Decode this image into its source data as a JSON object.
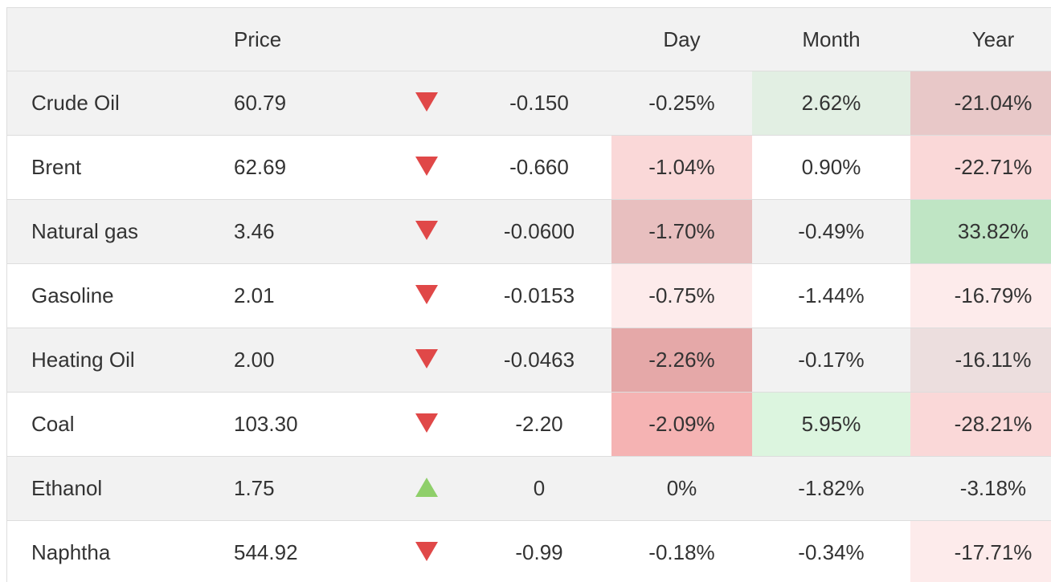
{
  "header": {
    "name": "",
    "price": "Price",
    "arrow": "",
    "change": "",
    "day": "Day",
    "month": "Month",
    "year": "Year"
  },
  "rows": [
    {
      "name": "Crude Oil",
      "price": "60.79",
      "direction": "down",
      "change": "-0.150",
      "day": "-0.25%",
      "month": "2.62%",
      "year": "-21.04%",
      "day_bg": "",
      "month_bg": "#e2efe3",
      "year_bg": "#e8c8c8"
    },
    {
      "name": "Brent",
      "price": "62.69",
      "direction": "down",
      "change": "-0.660",
      "day": "-1.04%",
      "month": "0.90%",
      "year": "-22.71%",
      "day_bg": "#fad8d8",
      "month_bg": "",
      "year_bg": "#fad8d8"
    },
    {
      "name": "Natural gas",
      "price": "3.46",
      "direction": "down",
      "change": "-0.0600",
      "day": "-1.70%",
      "month": "-0.49%",
      "year": "33.82%",
      "day_bg": "#e8bfbf",
      "month_bg": "",
      "year_bg": "#bfe5c4"
    },
    {
      "name": "Gasoline",
      "price": "2.01",
      "direction": "down",
      "change": "-0.0153",
      "day": "-0.75%",
      "month": "-1.44%",
      "year": "-16.79%",
      "day_bg": "#fdebeb",
      "month_bg": "",
      "year_bg": "#fdebeb"
    },
    {
      "name": "Heating Oil",
      "price": "2.00",
      "direction": "down",
      "change": "-0.0463",
      "day": "-2.26%",
      "month": "-0.17%",
      "year": "-16.11%",
      "day_bg": "#e5a8a8",
      "month_bg": "",
      "year_bg": "#ecdede"
    },
    {
      "name": "Coal",
      "price": "103.30",
      "direction": "down",
      "change": "-2.20",
      "day": "-2.09%",
      "month": "5.95%",
      "year": "-28.21%",
      "day_bg": "#f5b3b3",
      "month_bg": "#dcf5df",
      "year_bg": "#fad8d8"
    },
    {
      "name": "Ethanol",
      "price": "1.75",
      "direction": "up",
      "change": "0",
      "day": "0%",
      "month": "-1.82%",
      "year": "-3.18%",
      "day_bg": "",
      "month_bg": "",
      "year_bg": ""
    },
    {
      "name": "Naphtha",
      "price": "544.92",
      "direction": "down",
      "change": "-0.99",
      "day": "-0.18%",
      "month": "-0.34%",
      "year": "-17.71%",
      "day_bg": "",
      "month_bg": "",
      "year_bg": "#fdebeb"
    }
  ],
  "partial_row": {
    "month_bg": "#f0a6a6"
  }
}
